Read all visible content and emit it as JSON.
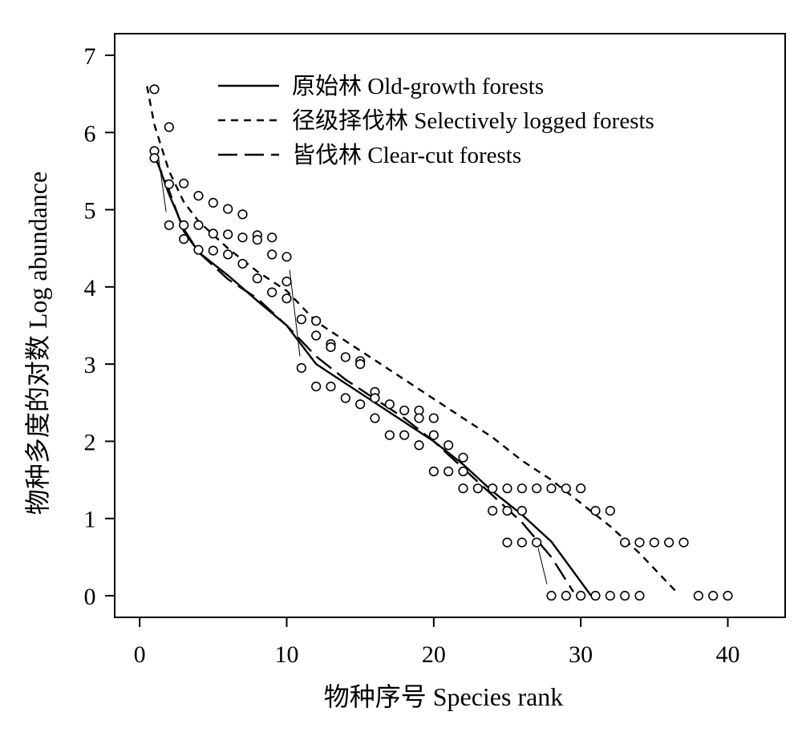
{
  "chart_data": {
    "type": "scatter",
    "xlabel": "物种序号 Species rank",
    "ylabel": "物种多度的对数 Log abundance",
    "xlim": [
      -1.7,
      43.9
    ],
    "ylim": [
      -0.28,
      7.28
    ],
    "xticks": [
      "0",
      "10",
      "20",
      "30",
      "40"
    ],
    "xtick_values": [
      0,
      10,
      20,
      30,
      40
    ],
    "yticks": [
      "0",
      "1",
      "2",
      "3",
      "4",
      "5",
      "6",
      "7"
    ],
    "ytick_values": [
      0,
      1,
      2,
      3,
      4,
      5,
      6,
      7
    ],
    "legend_position": "top",
    "legend": [
      {
        "label": "原始林 Old-growth forests",
        "dash": "solid"
      },
      {
        "label": "径级择伐林 Selectively logged forests",
        "dash": "short-dash"
      },
      {
        "label": "皆伐林 Clear-cut forests",
        "dash": "long-dash"
      }
    ],
    "points": [
      [
        1,
        6.56
      ],
      [
        1,
        5.76
      ],
      [
        1,
        5.67
      ],
      [
        2,
        6.07
      ],
      [
        2,
        5.33
      ],
      [
        2,
        4.8
      ],
      [
        3,
        5.34
      ],
      [
        3,
        4.8
      ],
      [
        3,
        4.62
      ],
      [
        4,
        5.18
      ],
      [
        4,
        4.8
      ],
      [
        4,
        4.48
      ],
      [
        5,
        5.09
      ],
      [
        5,
        4.69
      ],
      [
        5,
        4.47
      ],
      [
        6,
        5.01
      ],
      [
        6,
        4.68
      ],
      [
        6,
        4.42
      ],
      [
        7,
        4.94
      ],
      [
        7,
        4.64
      ],
      [
        7,
        4.3
      ],
      [
        8,
        4.67
      ],
      [
        8,
        4.61
      ],
      [
        8,
        4.11
      ],
      [
        9,
        4.64
      ],
      [
        9,
        4.42
      ],
      [
        9,
        3.93
      ],
      [
        10,
        4.39
      ],
      [
        10,
        4.07
      ],
      [
        10,
        3.85
      ],
      [
        11,
        3.58
      ],
      [
        11,
        2.95
      ],
      [
        12,
        3.56
      ],
      [
        12,
        3.37
      ],
      [
        12,
        2.71
      ],
      [
        13,
        3.26
      ],
      [
        13,
        3.22
      ],
      [
        13,
        2.71
      ],
      [
        14,
        3.09
      ],
      [
        14,
        2.56
      ],
      [
        15,
        3.04
      ],
      [
        15,
        3.0
      ],
      [
        15,
        2.48
      ],
      [
        16,
        2.64
      ],
      [
        16,
        2.56
      ],
      [
        16,
        2.3
      ],
      [
        17,
        2.48
      ],
      [
        17,
        2.08
      ],
      [
        18,
        2.4
      ],
      [
        18,
        2.08
      ],
      [
        19,
        2.4
      ],
      [
        19,
        2.3
      ],
      [
        19,
        1.95
      ],
      [
        20,
        2.3
      ],
      [
        20,
        2.08
      ],
      [
        20,
        1.61
      ],
      [
        21,
        1.95
      ],
      [
        21,
        1.61
      ],
      [
        22,
        1.79
      ],
      [
        22,
        1.61
      ],
      [
        22,
        1.39
      ],
      [
        23,
        1.39
      ],
      [
        24,
        1.39
      ],
      [
        24,
        1.1
      ],
      [
        25,
        1.39
      ],
      [
        25,
        1.1
      ],
      [
        25,
        0.69
      ],
      [
        26,
        1.39
      ],
      [
        26,
        1.1
      ],
      [
        26,
        0.69
      ],
      [
        27,
        1.39
      ],
      [
        27,
        0.69
      ],
      [
        28,
        1.39
      ],
      [
        28,
        0.0
      ],
      [
        29,
        1.39
      ],
      [
        29,
        0.0
      ],
      [
        30,
        1.39
      ],
      [
        30,
        0.0
      ],
      [
        31,
        1.1
      ],
      [
        31,
        0.0
      ],
      [
        32,
        1.1
      ],
      [
        32,
        0.0
      ],
      [
        33,
        0.69
      ],
      [
        33,
        0.0
      ],
      [
        34,
        0.69
      ],
      [
        34,
        0.0
      ],
      [
        35,
        0.69
      ],
      [
        36,
        0.69
      ],
      [
        37,
        0.69
      ],
      [
        38,
        0.0
      ],
      [
        39,
        0.0
      ],
      [
        40,
        0.0
      ]
    ],
    "series": [
      {
        "name": "原始林 Old-growth forests",
        "dash": "solid",
        "x": [
          1,
          2,
          3,
          4,
          5,
          6,
          8,
          10,
          12,
          14,
          16,
          18,
          20,
          22,
          24,
          26,
          28,
          30.7
        ],
        "y": [
          5.72,
          5.2,
          4.75,
          4.45,
          4.3,
          4.15,
          3.82,
          3.5,
          3.0,
          2.75,
          2.5,
          2.25,
          2.0,
          1.7,
          1.35,
          1.05,
          0.7,
          0.0
        ]
      },
      {
        "name": "径级择伐林 Selectively logged forests",
        "dash": "short-dash",
        "x": [
          0.5,
          1,
          2,
          3,
          4,
          6,
          8,
          10,
          12,
          14,
          16,
          18,
          20,
          22,
          24,
          26,
          28,
          30,
          32,
          34,
          36.5
        ],
        "y": [
          6.6,
          6.1,
          5.5,
          5.1,
          4.85,
          4.5,
          4.2,
          3.95,
          3.55,
          3.3,
          3.05,
          2.8,
          2.55,
          2.3,
          2.05,
          1.75,
          1.5,
          1.2,
          0.9,
          0.55,
          0.05
        ]
      },
      {
        "name": "皆伐林 Clear-cut forests",
        "dash": "long-dash",
        "x": [
          1,
          2,
          3,
          4,
          6,
          8,
          10,
          12,
          14,
          16,
          18,
          20,
          22,
          24,
          26,
          28,
          29.5
        ],
        "y": [
          5.7,
          5.25,
          4.72,
          4.45,
          4.1,
          3.85,
          3.5,
          3.1,
          2.8,
          2.55,
          2.3,
          2.0,
          1.65,
          1.3,
          0.95,
          0.5,
          0.05
        ]
      }
    ],
    "guide_segments": [
      [
        [
          1.3,
          5.65
        ],
        [
          1.8,
          4.97
        ]
      ],
      [
        [
          10.2,
          4.22
        ],
        [
          10.9,
          3.1
        ]
      ],
      [
        [
          27.1,
          0.62
        ],
        [
          27.7,
          0.15
        ]
      ]
    ]
  }
}
